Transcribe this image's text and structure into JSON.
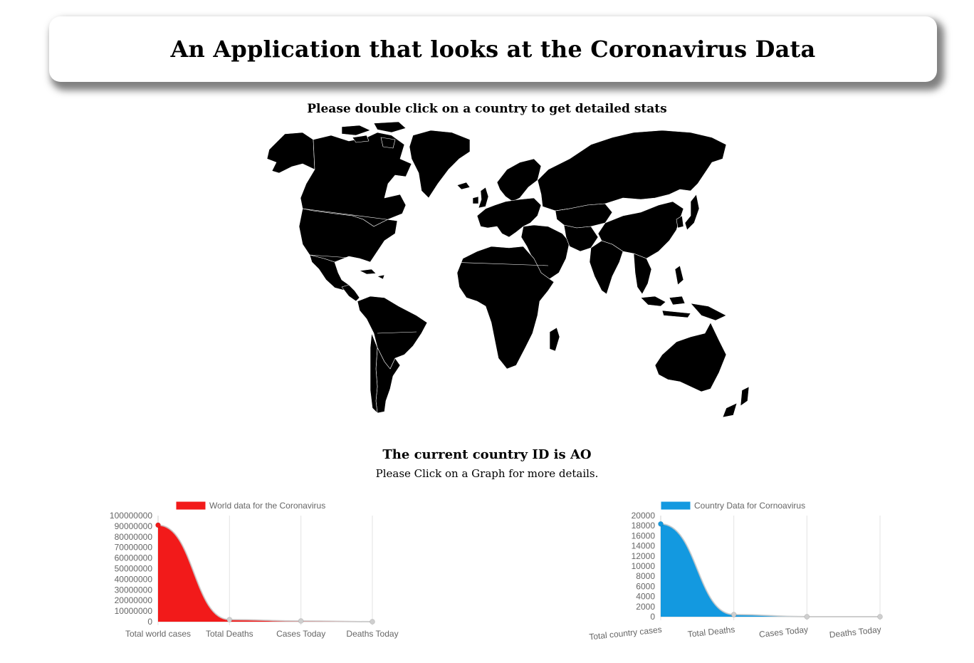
{
  "header": {
    "title": "An Application that looks at the Coronavirus Data"
  },
  "map": {
    "instruction": "Please double click on a country to get detailed stats"
  },
  "selection": {
    "label": "The current country ID is",
    "country_id": "AO",
    "graph_instruction": "Please Click on a Graph for more details."
  },
  "chart_data": [
    {
      "type": "area",
      "title": "",
      "legend": "World data for the Coronavirus",
      "legend_position": "top",
      "color": "#f21a1a",
      "categories": [
        "Total world cases",
        "Total Deaths",
        "Cases Today",
        "Deaths Today"
      ],
      "values": [
        91000000,
        1950000,
        700000,
        14000
      ],
      "ylim": [
        0,
        100000000
      ],
      "yticks": [
        "100000000",
        "90000000",
        "80000000",
        "70000000",
        "60000000",
        "50000000",
        "40000000",
        "30000000",
        "20000000",
        "10000000",
        "0"
      ],
      "grid": true
    },
    {
      "type": "area",
      "title": "",
      "legend": "Country Data for Cornoavirus",
      "legend_position": "top",
      "color": "#1399e0",
      "categories": [
        "Total country cases",
        "Total Deaths",
        "Cases Today",
        "Deaths Today"
      ],
      "values": [
        18343,
        422,
        0,
        0
      ],
      "ylim": [
        0,
        20000
      ],
      "yticks": [
        "20000",
        "18000",
        "16000",
        "14000",
        "12000",
        "10000",
        "8000",
        "6000",
        "4000",
        "2000",
        "0"
      ],
      "grid": true
    }
  ]
}
